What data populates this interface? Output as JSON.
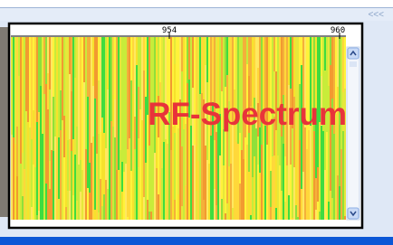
{
  "toolbar": {
    "collapse": "<<<"
  },
  "axis": {
    "labels": [
      "954",
      "960"
    ]
  },
  "overlay": {
    "title": "RF-Spectrum"
  }
}
